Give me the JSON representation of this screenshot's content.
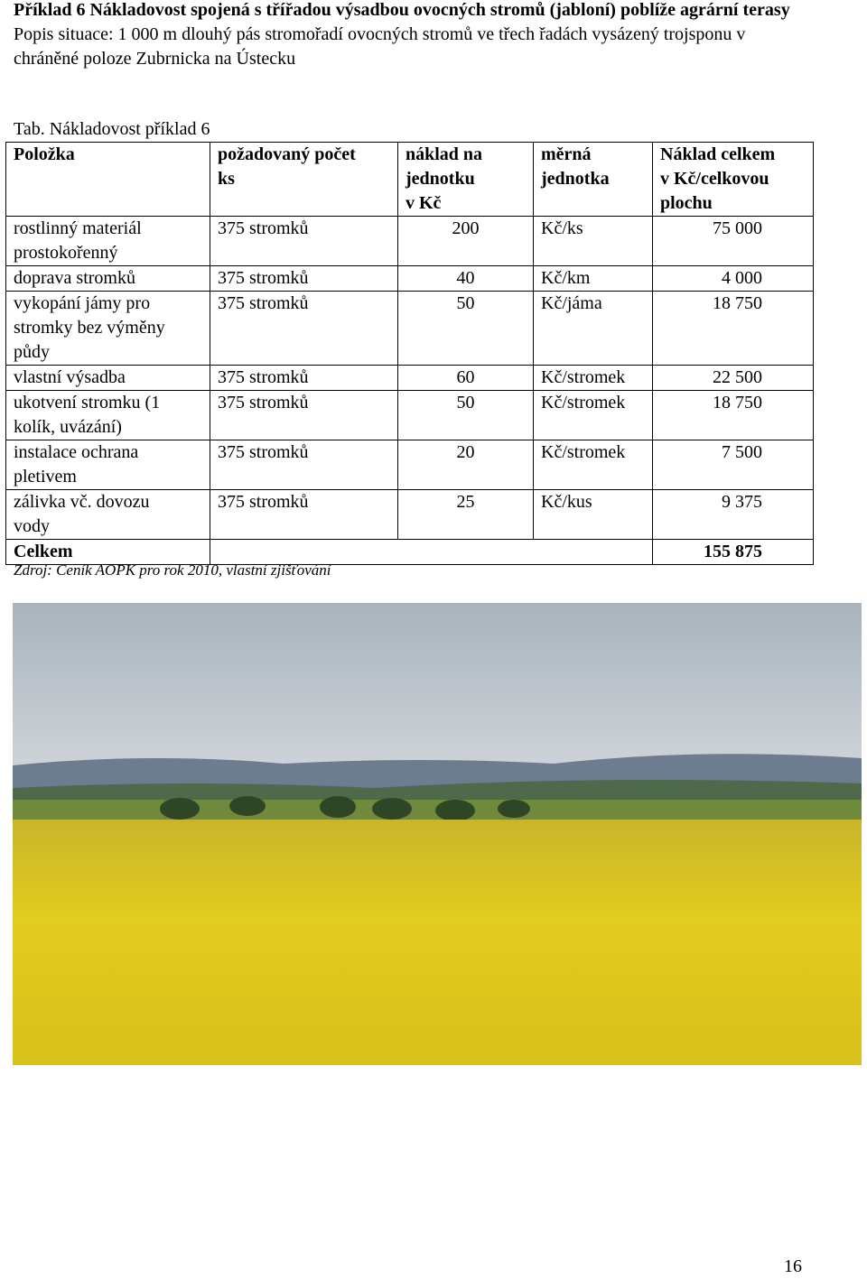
{
  "heading": {
    "title": "Příklad 6 Nákladovost spojená s třířadou výsadbou ovocných stromů (jabloní) poblíže agrární terasy",
    "description": "Popis situace: 1 000 m dlouhý pás stromořadí ovocných stromů ve třech řadách vysázený trojsponu v chráněné poloze Zubrnicka na Ústecku"
  },
  "table": {
    "caption": "Tab. Nákladovost příklad 6",
    "header": [
      [
        "Položka"
      ],
      [
        "požadovaný počet",
        "ks"
      ],
      [
        "náklad na",
        "jednotku",
        "v Kč"
      ],
      [
        "měrná",
        "jednotka"
      ],
      [
        "Náklad celkem",
        "v Kč/celkovou",
        "plochu"
      ]
    ],
    "rows": [
      [
        "rostlinný materiál prostokořenný",
        "375 stromků",
        "200",
        "Kč/ks",
        "75 000"
      ],
      [
        "doprava stromků",
        "375 stromků",
        "40",
        "Kč/km",
        "4 000"
      ],
      [
        "vykopání jámy pro stromky bez výměny půdy",
        "375 stromků",
        "50",
        "Kč/jáma",
        "18 750"
      ],
      [
        "vlastní výsadba",
        "375 stromků",
        "60",
        "Kč/stromek",
        "22 500"
      ],
      [
        "ukotvení stromku (1 kolík, uvázání)",
        "375 stromků",
        "50",
        "Kč/stromek",
        "18 750"
      ],
      [
        "instalace ochrana pletivem",
        "375 stromků",
        "20",
        "Kč/stromek",
        "7 500"
      ],
      [
        "zálivka vč. dovozu vody",
        "375 stromků",
        "25",
        "Kč/kus",
        "9 375"
      ]
    ],
    "total": {
      "label": "Celkem",
      "value": "155 875"
    },
    "source": "Zdroj: Ceník AOPK pro rok 2010, vlastní zjišťování"
  },
  "page_number": "16"
}
